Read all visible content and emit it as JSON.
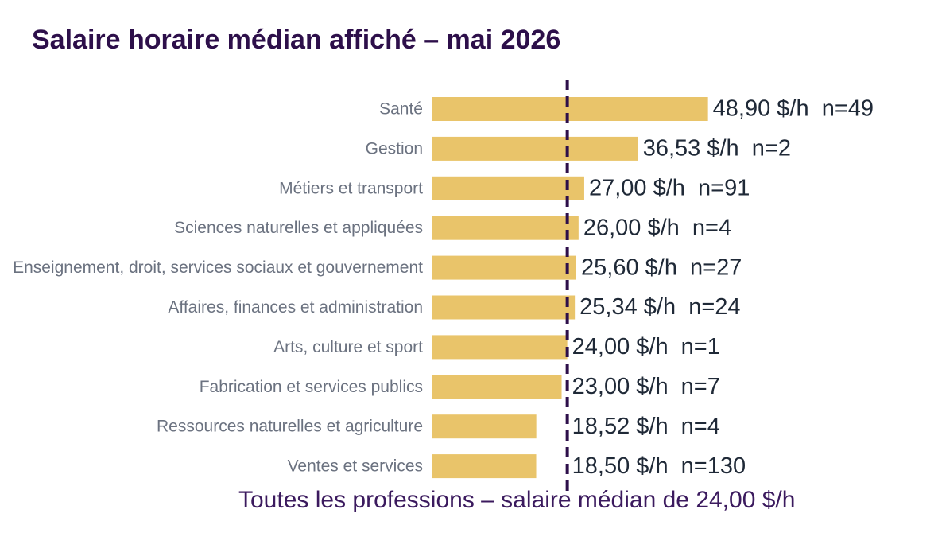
{
  "chart_data": {
    "type": "bar",
    "orientation": "horizontal",
    "title": "Salaire horaire médian affiché – mai 2026",
    "categories": [
      "Santé",
      "Gestion",
      "Métiers et transport",
      "Sciences naturelles et appliquées",
      "Enseignement, droit, services sociaux et gouvernement",
      "Affaires, finances et administration",
      "Arts, culture et sport",
      "Fabrication et services publics",
      "Ressources naturelles et agriculture",
      "Ventes et services"
    ],
    "values": [
      48.9,
      36.53,
      27.0,
      26.0,
      25.6,
      25.34,
      24.0,
      23.0,
      18.52,
      18.5
    ],
    "value_labels": [
      "48,90 $/h  n=49",
      "36,53 $/h  n=2",
      "27,00 $/h  n=91",
      "26,00 $/h  n=4",
      "25,60 $/h  n=27",
      "25,34 $/h  n=24",
      "24,00 $/h  n=1",
      "23,00 $/h  n=7",
      "18,52 $/h  n=4",
      "18,50 $/h  n=130"
    ],
    "color": "#e9c46a",
    "xlim": [
      0,
      89.6
    ],
    "reference_line": {
      "value": 24.0,
      "label": "Toutes les professions – salaire médian de 24,00 $/h",
      "color": "#2d0f4a"
    }
  }
}
